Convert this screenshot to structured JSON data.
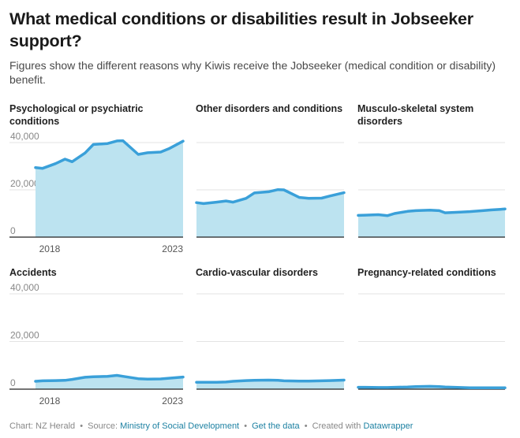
{
  "header": {
    "title": "What medical conditions or disabilities result in Jobseeker support?",
    "subtitle": "Figures show the different reasons why Kiwis receive the Jobseeker (medical condition or disability) benefit."
  },
  "colors": {
    "line": "#3aa0d9",
    "area": "#bce3f0",
    "grid": "#e3e3e3",
    "baseline": "#222222",
    "link": "#1d81a2"
  },
  "chart_data": {
    "type": "area",
    "layout": "small-multiples 3x2",
    "ylim": [
      0,
      40000
    ],
    "y_ticks": [
      "0",
      "20,000",
      "40,000"
    ],
    "y_tick_values": [
      0,
      20000,
      40000
    ],
    "x_ticks": [
      "2018",
      "2023"
    ],
    "x_tick_values": [
      2018,
      2023
    ],
    "xlim": [
      2017.4,
      2023.65
    ],
    "grid": true,
    "x": [
      2017.4,
      2017.7,
      2018.25,
      2018.65,
      2018.95,
      2019.5,
      2019.85,
      2020.45,
      2020.85,
      2021.1,
      2021.75,
      2022.15,
      2022.7,
      2023.05,
      2023.65
    ],
    "series": [
      {
        "name": "Psychological or psychiatric conditions",
        "values": [
          29400,
          29100,
          31100,
          33000,
          31900,
          35600,
          39200,
          39600,
          40700,
          40800,
          35000,
          35700,
          36000,
          37400,
          40600
        ]
      },
      {
        "name": "Other disorders and conditions",
        "values": [
          14600,
          14200,
          14800,
          15300,
          14800,
          16400,
          18700,
          19200,
          20100,
          20000,
          16800,
          16400,
          16500,
          17400,
          18800
        ]
      },
      {
        "name": "Musculo-skeletal system disorders",
        "values": [
          9200,
          9300,
          9500,
          9100,
          10000,
          10900,
          11200,
          11400,
          11200,
          10300,
          10600,
          10800,
          11200,
          11500,
          11900
        ]
      },
      {
        "name": "Accidents",
        "values": [
          3300,
          3500,
          3600,
          3700,
          4100,
          5000,
          5200,
          5400,
          5800,
          5400,
          4400,
          4200,
          4300,
          4600,
          5100
        ]
      },
      {
        "name": "Cardio-vascular disorders",
        "values": [
          2900,
          2900,
          2900,
          3000,
          3300,
          3600,
          3700,
          3800,
          3700,
          3500,
          3400,
          3400,
          3500,
          3600,
          3800
        ]
      },
      {
        "name": "Pregnancy-related conditions",
        "values": [
          800,
          800,
          700,
          700,
          800,
          900,
          1100,
          1200,
          1100,
          900,
          700,
          600,
          600,
          600,
          600
        ]
      }
    ]
  },
  "panels": [
    {
      "title": "Psychological or psychiatric conditions",
      "show_y_labels": true,
      "show_x_labels": true
    },
    {
      "title": "Other disorders and conditions",
      "show_y_labels": false,
      "show_x_labels": false
    },
    {
      "title": "Musculo-skeletal system disorders",
      "show_y_labels": false,
      "show_x_labels": false
    },
    {
      "title": "Accidents",
      "show_y_labels": true,
      "show_x_labels": true
    },
    {
      "title": "Cardio-vascular disorders",
      "show_y_labels": false,
      "show_x_labels": false
    },
    {
      "title": "Pregnancy-related conditions",
      "show_y_labels": false,
      "show_x_labels": false
    }
  ],
  "footer": {
    "chart_label": "Chart: NZ Herald",
    "source_label": "Source:",
    "source_link": "Ministry of Social Development",
    "data_link": "Get the data",
    "created_label": "Created with",
    "created_link": "Datawrapper",
    "separator": "•"
  }
}
